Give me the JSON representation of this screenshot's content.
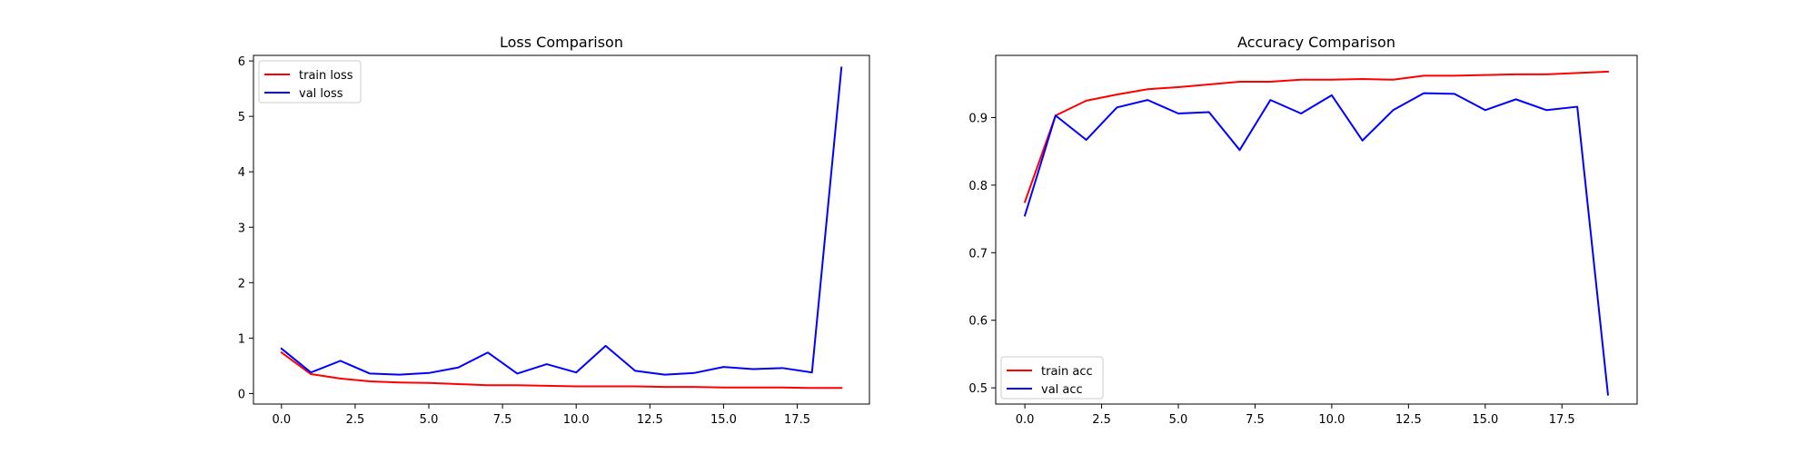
{
  "chart_data": [
    {
      "type": "line",
      "title": "Loss Comparison",
      "xlabel": "",
      "ylabel": "",
      "x": [
        0,
        1,
        2,
        3,
        4,
        5,
        6,
        7,
        8,
        9,
        10,
        11,
        12,
        13,
        14,
        15,
        16,
        17,
        18,
        19
      ],
      "xlim": [
        -0.95,
        19.95
      ],
      "ylim": [
        -0.19,
        6.1
      ],
      "xticks": [
        0.0,
        2.5,
        5.0,
        7.5,
        10.0,
        12.5,
        15.0,
        17.5
      ],
      "xtick_labels": [
        "0.0",
        "2.5",
        "5.0",
        "7.5",
        "10.0",
        "12.5",
        "15.0",
        "17.5"
      ],
      "yticks": [
        0,
        1,
        2,
        3,
        4,
        5,
        6
      ],
      "ytick_labels": [
        "0",
        "1",
        "2",
        "3",
        "4",
        "5",
        "6"
      ],
      "grid": false,
      "legend_position": "upper-left",
      "series": [
        {
          "name": "train loss",
          "color": "#ff0000",
          "values": [
            0.74,
            0.35,
            0.27,
            0.22,
            0.2,
            0.19,
            0.17,
            0.15,
            0.15,
            0.14,
            0.13,
            0.13,
            0.13,
            0.12,
            0.12,
            0.11,
            0.11,
            0.11,
            0.1,
            0.1
          ]
        },
        {
          "name": "val loss",
          "color": "#0000ff",
          "values": [
            0.81,
            0.38,
            0.59,
            0.36,
            0.34,
            0.37,
            0.47,
            0.74,
            0.36,
            0.53,
            0.38,
            0.86,
            0.41,
            0.34,
            0.37,
            0.48,
            0.44,
            0.46,
            0.38,
            5.88
          ]
        }
      ]
    },
    {
      "type": "line",
      "title": "Accuracy Comparison",
      "xlabel": "",
      "ylabel": "",
      "x": [
        0,
        1,
        2,
        3,
        4,
        5,
        6,
        7,
        8,
        9,
        10,
        11,
        12,
        13,
        14,
        15,
        16,
        17,
        18,
        19
      ],
      "xlim": [
        -0.95,
        19.95
      ],
      "ylim": [
        0.476,
        0.992
      ],
      "xticks": [
        0.0,
        2.5,
        5.0,
        7.5,
        10.0,
        12.5,
        15.0,
        17.5
      ],
      "xtick_labels": [
        "0.0",
        "2.5",
        "5.0",
        "7.5",
        "10.0",
        "12.5",
        "15.0",
        "17.5"
      ],
      "yticks": [
        0.5,
        0.6,
        0.7,
        0.8,
        0.9
      ],
      "ytick_labels": [
        "0.5",
        "0.6",
        "0.7",
        "0.8",
        "0.9"
      ],
      "grid": false,
      "legend_position": "lower-left",
      "series": [
        {
          "name": "train acc",
          "color": "#ff0000",
          "values": [
            0.775,
            0.903,
            0.925,
            0.934,
            0.942,
            0.945,
            0.949,
            0.953,
            0.953,
            0.956,
            0.956,
            0.957,
            0.956,
            0.962,
            0.962,
            0.963,
            0.964,
            0.964,
            0.966,
            0.968
          ]
        },
        {
          "name": "val acc",
          "color": "#0000ff",
          "values": [
            0.755,
            0.903,
            0.867,
            0.915,
            0.926,
            0.906,
            0.908,
            0.852,
            0.926,
            0.906,
            0.933,
            0.866,
            0.911,
            0.936,
            0.935,
            0.911,
            0.927,
            0.911,
            0.916,
            0.49
          ]
        }
      ]
    }
  ]
}
